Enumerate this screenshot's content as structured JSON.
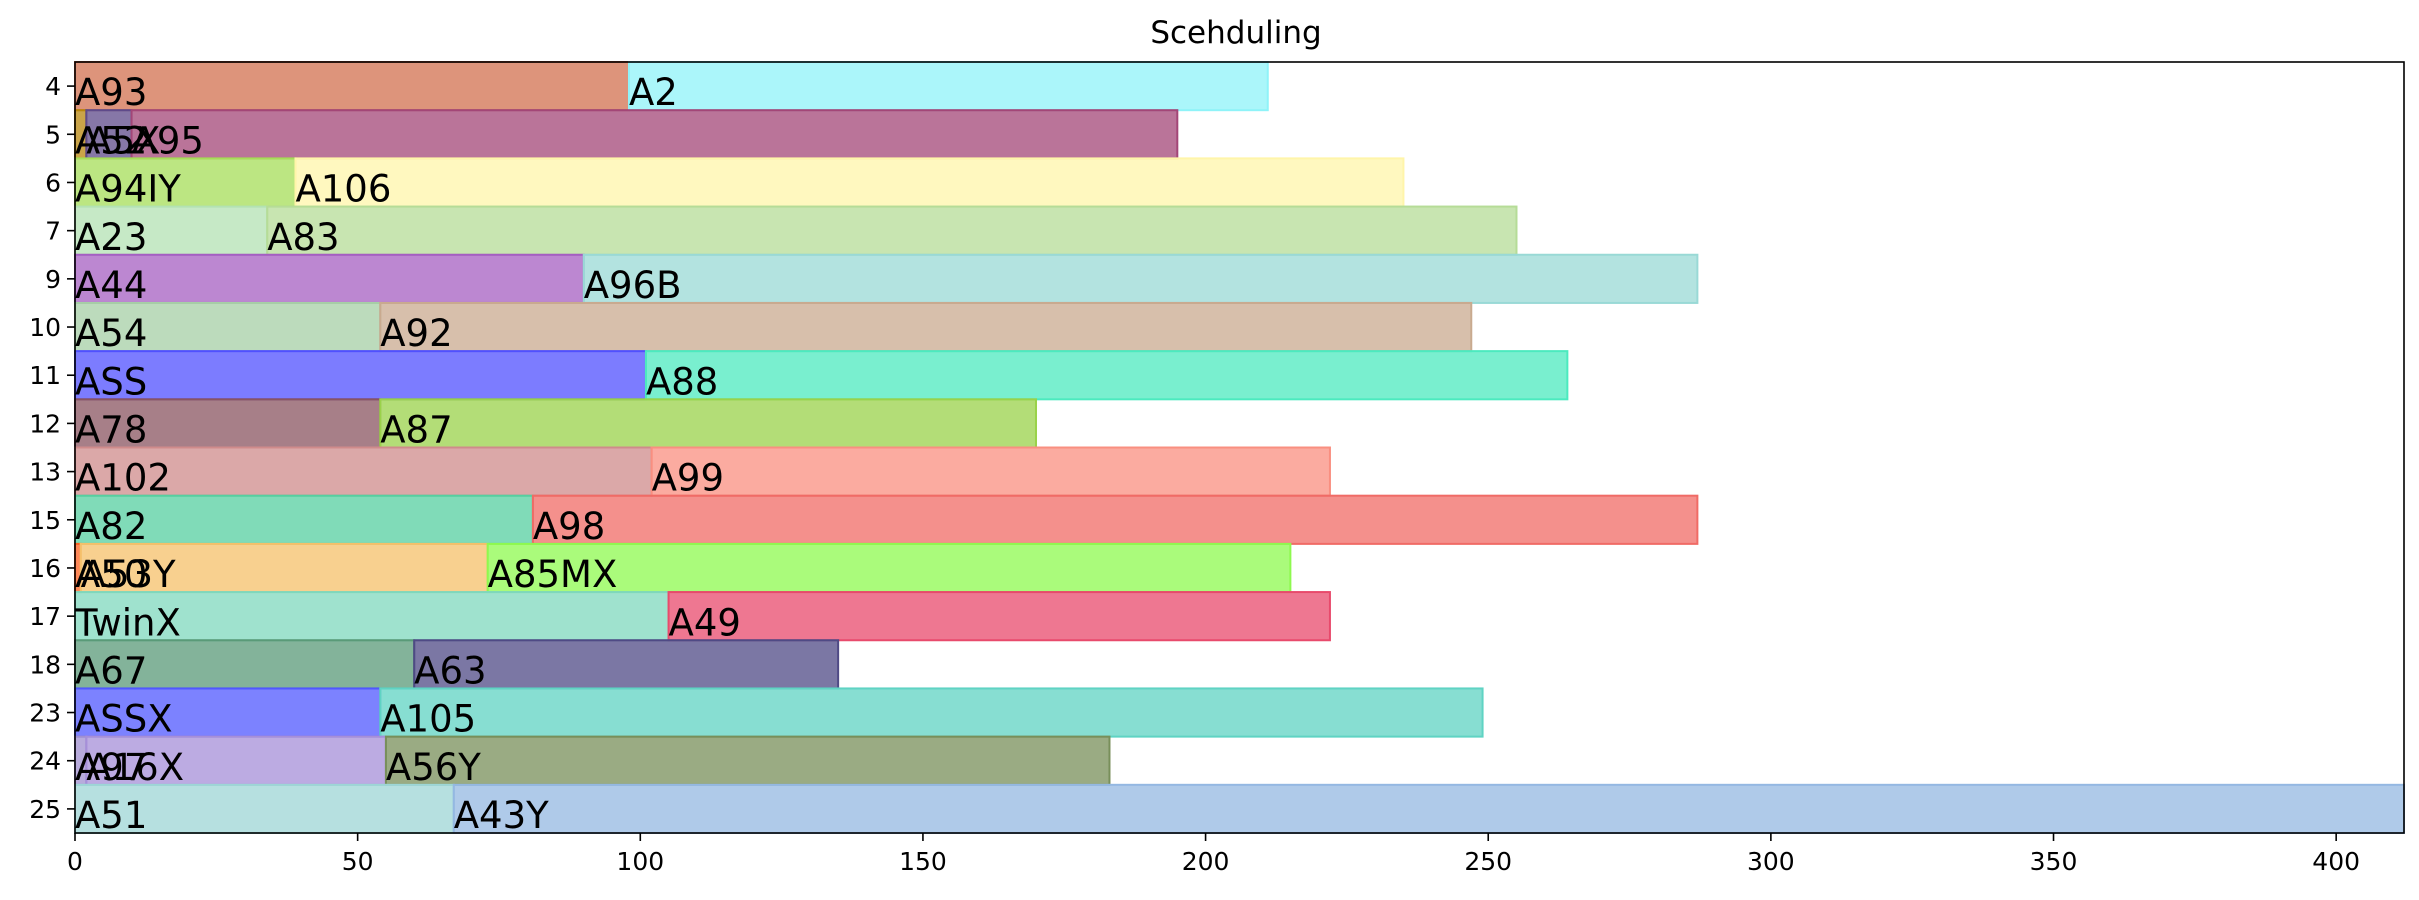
{
  "chart_data": {
    "type": "bar",
    "orientation": "horizontal-stacked",
    "title": "Scehduling",
    "xlim": [
      0,
      412
    ],
    "xticks": [
      0,
      50,
      100,
      150,
      200,
      250,
      300,
      350,
      400
    ],
    "rows": [
      {
        "label": "4",
        "segments": [
          {
            "name": "A93",
            "start": 0,
            "end": 98,
            "color": "#d2704f"
          },
          {
            "name": "A2",
            "start": 98,
            "end": 211,
            "color": "#8ff3f8"
          }
        ]
      },
      {
        "label": "5",
        "segments": [
          {
            "name": "A52",
            "start": 0,
            "end": 2,
            "color": "#b8860b"
          },
          {
            "name": "A5X",
            "start": 2,
            "end": 10,
            "color": "#5e4a8a"
          },
          {
            "name": "A95",
            "start": 10,
            "end": 195,
            "color": "#a34677"
          }
        ]
      },
      {
        "label": "6",
        "segments": [
          {
            "name": "A94IY",
            "start": 0,
            "end": 39,
            "color": "#a6dd58"
          },
          {
            "name": "A106",
            "start": 39,
            "end": 235,
            "color": "#fff5aa"
          }
        ]
      },
      {
        "label": "7",
        "segments": [
          {
            "name": "A23",
            "start": 0,
            "end": 34,
            "color": "#b3e2b3"
          },
          {
            "name": "A83",
            "start": 34,
            "end": 255,
            "color": "#b6dc97"
          }
        ]
      },
      {
        "label": "9",
        "segments": [
          {
            "name": "A44",
            "start": 0,
            "end": 90,
            "color": "#a55fc2"
          },
          {
            "name": "A96B",
            "start": 90,
            "end": 287,
            "color": "#99d9d6"
          }
        ]
      },
      {
        "label": "10",
        "segments": [
          {
            "name": "A54",
            "start": 0,
            "end": 54,
            "color": "#a6cfa6"
          },
          {
            "name": "A92",
            "start": 54,
            "end": 247,
            "color": "#c9aa8f"
          }
        ]
      },
      {
        "label": "11",
        "segments": [
          {
            "name": "ASS",
            "start": 0,
            "end": 101,
            "color": "#5050ff"
          },
          {
            "name": "A88",
            "start": 101,
            "end": 264,
            "color": "#4ceabf"
          }
        ]
      },
      {
        "label": "12",
        "segments": [
          {
            "name": "A78",
            "start": 0,
            "end": 54,
            "color": "#8a5460"
          },
          {
            "name": "A87",
            "start": 54,
            "end": 170,
            "color": "#9ad24a"
          }
        ]
      },
      {
        "label": "13",
        "segments": [
          {
            "name": "A102",
            "start": 0,
            "end": 102,
            "color": "#cf8b8b"
          },
          {
            "name": "A99",
            "start": 102,
            "end": 222,
            "color": "#f98f80"
          }
        ]
      },
      {
        "label": "15",
        "segments": [
          {
            "name": "A82",
            "start": 0,
            "end": 81,
            "color": "#56cfa0"
          },
          {
            "name": "A98",
            "start": 81,
            "end": 287,
            "color": "#f06b66"
          }
        ]
      },
      {
        "label": "16",
        "segments": [
          {
            "name": "A50",
            "start": 0,
            "end": 1,
            "color": "#ff6020"
          },
          {
            "name": "A53Y",
            "start": 1,
            "end": 73,
            "color": "#f5c06a"
          },
          {
            "name": "A85MX",
            "start": 73,
            "end": 215,
            "color": "#8ef94f"
          }
        ]
      },
      {
        "label": "17",
        "segments": [
          {
            "name": "TwinX",
            "start": 0,
            "end": 105,
            "color": "#7fd8bd"
          },
          {
            "name": "A49",
            "start": 105,
            "end": 222,
            "color": "#e84a6c"
          }
        ]
      },
      {
        "label": "18",
        "segments": [
          {
            "name": "A67",
            "start": 0,
            "end": 60,
            "color": "#5a9a78"
          },
          {
            "name": "A63",
            "start": 60,
            "end": 135,
            "color": "#4f4a85"
          }
        ]
      },
      {
        "label": "23",
        "segments": [
          {
            "name": "ASSX",
            "start": 0,
            "end": 54,
            "color": "#5058ff"
          },
          {
            "name": "A105",
            "start": 54,
            "end": 249,
            "color": "#5fd3c3"
          }
        ]
      },
      {
        "label": "24",
        "segments": [
          {
            "name": "A97",
            "start": 0,
            "end": 2,
            "color": "#a08fd0"
          },
          {
            "name": "A16X",
            "start": 2,
            "end": 55,
            "color": "#a68fd8"
          },
          {
            "name": "A56Y",
            "start": 55,
            "end": 183,
            "color": "#788f5a"
          }
        ]
      },
      {
        "label": "25",
        "segments": [
          {
            "name": "A51",
            "start": 0,
            "end": 67,
            "color": "#9dd6d6"
          },
          {
            "name": "A43Y",
            "start": 67,
            "end": 412,
            "color": "#94b8e2"
          }
        ]
      }
    ]
  }
}
